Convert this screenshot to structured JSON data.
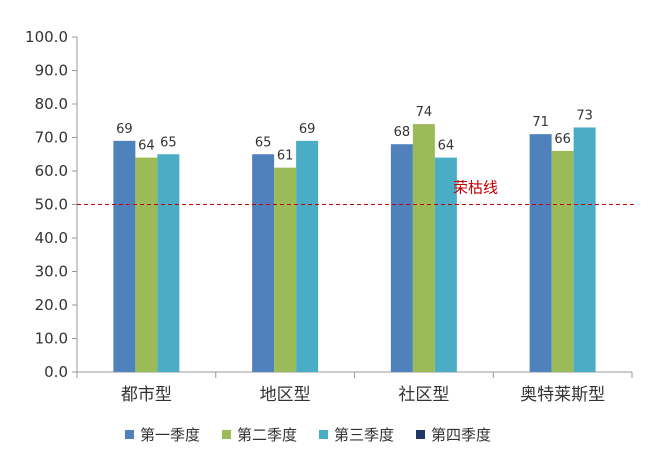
{
  "chart_data": {
    "type": "bar",
    "categories": [
      "都市型",
      "地区型",
      "社区型",
      "奥特莱斯型"
    ],
    "series": [
      {
        "name": "第一季度",
        "values": [
          69,
          65,
          68,
          71
        ],
        "color": "#4f81bd"
      },
      {
        "name": "第二季度",
        "values": [
          64,
          61,
          74,
          66
        ],
        "color": "#9bbb59"
      },
      {
        "name": "第三季度",
        "values": [
          65,
          69,
          64,
          73
        ],
        "color": "#4bacc6"
      },
      {
        "name": "第四季度",
        "values": [
          null,
          null,
          null,
          null
        ],
        "color": "#1f3864"
      }
    ],
    "ylim": [
      0,
      100
    ],
    "yticks": [
      "0.0",
      "10.0",
      "20.0",
      "30.0",
      "40.0",
      "50.0",
      "60.0",
      "70.0",
      "80.0",
      "90.0",
      "100.0"
    ],
    "reference_line": {
      "value": 50,
      "label": "荣枯线",
      "color": "#c00000",
      "style": "dashed"
    },
    "grid": false,
    "legend_position": "bottom"
  }
}
